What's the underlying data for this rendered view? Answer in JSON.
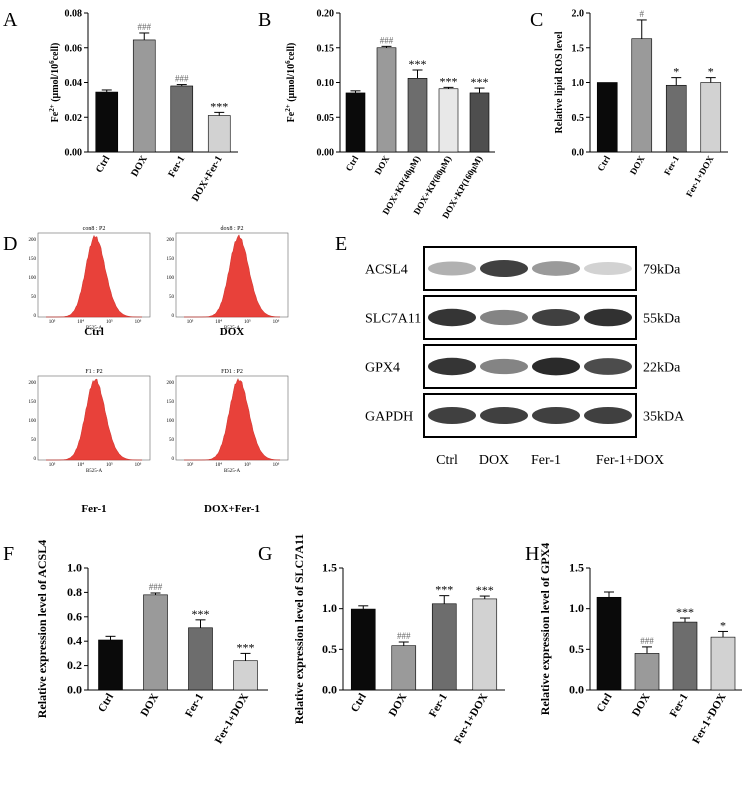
{
  "panel_letters": [
    "A",
    "B",
    "C",
    "D",
    "E",
    "F",
    "G",
    "H"
  ],
  "colors": {
    "ctrl": "#0a0a0a",
    "dox": "#9a9a9a",
    "fer": "#6d6d6d",
    "combo": "#d2d2d2",
    "kp4": "#c8c8c8",
    "kp8": "#e8e8e8",
    "kp16": "#4e4e4e",
    "histogram": "#e8413a",
    "blot": "#1f1f1f"
  },
  "chart_data": [
    {
      "id": "A",
      "type": "bar",
      "ylabel_html": "Fe<tspan baseline-shift='super' font-size='7'>2+</tspan> (μmol/10<tspan baseline-shift='super' font-size='7'>6</tspan>cell)",
      "ylabel_plain": "Fe2+ (μmol/106cell)",
      "ylim": [
        0,
        0.08
      ],
      "yticks": [
        "0.00",
        "0.02",
        "0.04",
        "0.06",
        "0.08"
      ],
      "categories": [
        "Ctrl",
        "DOX",
        "Fer-1",
        "DOX+Fer-1"
      ],
      "values": [
        0.0345,
        0.0645,
        0.038,
        0.021
      ],
      "errors": [
        0.0012,
        0.004,
        0.0008,
        0.0018
      ],
      "annotations": [
        "",
        "###",
        "###",
        "***"
      ],
      "color_keys": [
        "ctrl",
        "dox",
        "fer",
        "combo"
      ]
    },
    {
      "id": "B",
      "type": "bar",
      "ylabel_html": "Fe<tspan baseline-shift='super' font-size='7'>2+</tspan> (μmol/10<tspan baseline-shift='super' font-size='7'>6</tspan>cell)",
      "ylabel_plain": "Fe2+ (μmol/106cell)",
      "ylim": [
        0,
        0.2
      ],
      "yticks": [
        "0.00",
        "0.05",
        "0.10",
        "0.15",
        "0.20"
      ],
      "categories": [
        "Ctrl",
        "DOX",
        "DOX+KP(40μM)",
        "DOX+KP(80μM)",
        "DOX+KP(160μM)"
      ],
      "values": [
        0.085,
        0.15,
        0.106,
        0.091,
        0.085
      ],
      "errors": [
        0.003,
        0.002,
        0.012,
        0.002,
        0.007
      ],
      "annotations": [
        "",
        "###",
        "***",
        "***",
        "***"
      ],
      "color_keys": [
        "ctrl",
        "dox",
        "fer",
        "kp8",
        "kp16"
      ]
    },
    {
      "id": "C",
      "type": "bar",
      "ylabel_plain": "Relative lipid ROS level",
      "ylim": [
        0,
        2.0
      ],
      "yticks": [
        "0.0",
        "0.5",
        "1.0",
        "1.5",
        "2.0"
      ],
      "categories": [
        "Ctrl",
        "DOX",
        "Fer-1",
        "Fer-1+DOX"
      ],
      "values": [
        1.0,
        1.63,
        0.96,
        1.0
      ],
      "errors": [
        0.0,
        0.27,
        0.11,
        0.07
      ],
      "annotations": [
        "",
        "#",
        "*",
        "*"
      ],
      "color_keys": [
        "ctrl",
        "dox",
        "fer",
        "combo"
      ]
    },
    {
      "id": "F",
      "type": "bar",
      "ylabel_plain": "Relative expression level of ACSL4",
      "ylim": [
        0,
        1.0
      ],
      "yticks": [
        "0.0",
        "0.2",
        "0.4",
        "0.6",
        "0.8",
        "1.0"
      ],
      "categories": [
        "Ctrl",
        "DOX",
        "Fer-1",
        "Fer-1+DOX"
      ],
      "values": [
        0.41,
        0.78,
        0.51,
        0.24
      ],
      "errors": [
        0.03,
        0.015,
        0.065,
        0.06
      ],
      "annotations": [
        "",
        "###",
        "***",
        "***"
      ],
      "color_keys": [
        "ctrl",
        "dox",
        "fer",
        "combo"
      ]
    },
    {
      "id": "G",
      "type": "bar",
      "ylabel_plain": "Relative expression level of SLC7A11",
      "ylim": [
        0,
        1.5
      ],
      "yticks": [
        "0.0",
        "0.5",
        "1.0",
        "1.5"
      ],
      "categories": [
        "Ctrl",
        "DOX",
        "Fer-1",
        "Fer-1+DOX"
      ],
      "values": [
        0.995,
        0.545,
        1.06,
        1.12
      ],
      "errors": [
        0.04,
        0.045,
        0.1,
        0.035
      ],
      "annotations": [
        "",
        "###",
        "***",
        "***"
      ],
      "color_keys": [
        "ctrl",
        "dox",
        "fer",
        "combo"
      ]
    },
    {
      "id": "H",
      "type": "bar",
      "ylabel_plain": "Relative expression level of GPX4",
      "ylim": [
        0,
        1.5
      ],
      "yticks": [
        "0.0",
        "0.5",
        "1.0",
        "1.5"
      ],
      "categories": [
        "Ctrl",
        "DOX",
        "Fer-1",
        "Fer-1+DOX"
      ],
      "values": [
        1.14,
        0.45,
        0.835,
        0.65
      ],
      "errors": [
        0.065,
        0.08,
        0.05,
        0.07
      ],
      "annotations": [
        "",
        "###",
        "***",
        "*"
      ],
      "color_keys": [
        "ctrl",
        "dox",
        "fer",
        "combo"
      ]
    }
  ],
  "flow": {
    "panels": [
      {
        "title": "con8 : P2",
        "label": "Ctrl"
      },
      {
        "title": "dox8 : P2",
        "label": "DOX"
      },
      {
        "title": "F1 : P2",
        "label": "Fer-1"
      },
      {
        "title": "FD1 : P2",
        "label": "DOX+Fer-1"
      }
    ],
    "xlabel": "B525-A",
    "yticks": [
      "200",
      "150",
      "100",
      "50",
      "0"
    ],
    "xticks": [
      "10³",
      "10⁴",
      "10⁵",
      "10⁶"
    ]
  },
  "western": {
    "proteins": [
      {
        "name": "ACSL4",
        "size": "79kDa",
        "intensity": [
          0.35,
          0.85,
          0.45,
          0.18
        ]
      },
      {
        "name": "SLC7A11",
        "size": "55kDa",
        "intensity": [
          0.9,
          0.55,
          0.85,
          0.92
        ]
      },
      {
        "name": "GPX4",
        "size": "22kDa",
        "intensity": [
          0.9,
          0.55,
          0.95,
          0.8
        ]
      },
      {
        "name": "GAPDH",
        "size": "35kDA",
        "intensity": [
          0.85,
          0.85,
          0.85,
          0.85
        ]
      }
    ],
    "lanes": [
      "Ctrl",
      "DOX",
      "Fer-1",
      "Fer-1+DOX"
    ]
  }
}
